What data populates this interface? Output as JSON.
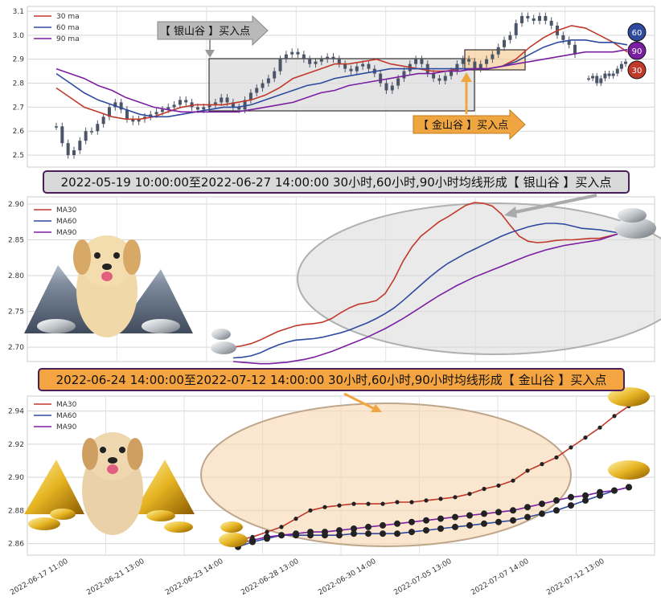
{
  "chart_data": [
    {
      "type": "candlestick",
      "ylim": [
        2.45,
        3.12
      ],
      "yticks": [
        "2.5",
        "2.6",
        "2.7",
        "2.8",
        "2.9",
        "3.0",
        "3.1"
      ],
      "grid": true,
      "legend_position": "top-left",
      "legend": [
        {
          "name": "30 ma",
          "color": "#c0392b"
        },
        {
          "name": "60 ma",
          "color": "#2e4a9e"
        },
        {
          "name": "90 ma",
          "color": "#7b1fa2"
        }
      ],
      "candles_approx_close": [
        2.62,
        2.55,
        2.5,
        2.52,
        2.56,
        2.6,
        2.6,
        2.63,
        2.66,
        2.7,
        2.72,
        2.69,
        2.65,
        2.64,
        2.65,
        2.66,
        2.67,
        2.68,
        2.69,
        2.7,
        2.71,
        2.73,
        2.72,
        2.7,
        2.69,
        2.7,
        2.71,
        2.72,
        2.74,
        2.72,
        2.7,
        2.69,
        2.73,
        2.76,
        2.78,
        2.8,
        2.82,
        2.85,
        2.9,
        2.92,
        2.93,
        2.92,
        2.9,
        2.88,
        2.89,
        2.9,
        2.91,
        2.9,
        2.88,
        2.86,
        2.85,
        2.87,
        2.88,
        2.86,
        2.84,
        2.8,
        2.77,
        2.79,
        2.82,
        2.85,
        2.88,
        2.9,
        2.88,
        2.84,
        2.82,
        2.81,
        2.83,
        2.85,
        2.88,
        2.9,
        2.89,
        2.86,
        2.88,
        2.9,
        2.92,
        2.95,
        2.98,
        3.0,
        3.05,
        3.08,
        3.07,
        3.06,
        3.08,
        3.06,
        3.04,
        3.0,
        2.98,
        2.96,
        2.92
      ],
      "gap_after_index": 87,
      "candles_after_gap": [
        2.82,
        2.83,
        2.8,
        2.82,
        2.84,
        2.83,
        2.84,
        2.86,
        2.88,
        2.89
      ],
      "ma30": [
        2.78,
        2.74,
        2.7,
        2.68,
        2.66,
        2.65,
        2.65,
        2.66,
        2.68,
        2.7,
        2.71,
        2.71,
        2.71,
        2.72,
        2.73,
        2.75,
        2.78,
        2.82,
        2.84,
        2.86,
        2.88,
        2.88,
        2.89,
        2.9,
        2.88,
        2.87,
        2.86,
        2.85,
        2.85,
        2.86,
        2.86,
        2.86,
        2.87,
        2.9,
        2.95,
        2.99,
        3.02,
        3.04,
        3.03,
        3.0,
        2.97,
        2.93
      ],
      "ma60": [
        2.84,
        2.8,
        2.76,
        2.73,
        2.71,
        2.69,
        2.67,
        2.66,
        2.66,
        2.67,
        2.68,
        2.69,
        2.7,
        2.7,
        2.71,
        2.73,
        2.75,
        2.77,
        2.79,
        2.8,
        2.82,
        2.83,
        2.84,
        2.85,
        2.86,
        2.86,
        2.86,
        2.86,
        2.86,
        2.86,
        2.86,
        2.86,
        2.87,
        2.89,
        2.92,
        2.95,
        2.97,
        2.98,
        2.98,
        2.97,
        2.97,
        2.96
      ],
      "ma90": [
        2.86,
        2.84,
        2.82,
        2.79,
        2.77,
        2.74,
        2.72,
        2.7,
        2.69,
        2.68,
        2.68,
        2.68,
        2.68,
        2.68,
        2.69,
        2.7,
        2.71,
        2.72,
        2.74,
        2.76,
        2.77,
        2.79,
        2.8,
        2.81,
        2.82,
        2.83,
        2.84,
        2.84,
        2.85,
        2.85,
        2.86,
        2.86,
        2.87,
        2.88,
        2.89,
        2.9,
        2.91,
        2.92,
        2.93,
        2.93,
        2.93,
        2.94
      ],
      "badges": [
        "60",
        "90",
        "30"
      ],
      "annotation_silver": "【 银山谷 】买入点",
      "annotation_gold": "【 金山谷 】买入点"
    },
    {
      "type": "line",
      "title": "2022-05-19 10:00:00至2022-06-27 14:00:00 30小时,60小时,90小时均线形成【 银山谷 】买入点",
      "ylim": [
        2.68,
        2.91
      ],
      "yticks": [
        "2.70",
        "2.75",
        "2.80",
        "2.85",
        "2.90"
      ],
      "grid": true,
      "legend_position": "top-left",
      "series": [
        {
          "name": "MA30",
          "color": "#c0392b",
          "values": [
            2.7,
            2.702,
            2.705,
            2.71,
            2.716,
            2.722,
            2.726,
            2.73,
            2.732,
            2.733,
            2.735,
            2.74,
            2.748,
            2.755,
            2.76,
            2.762,
            2.765,
            2.775,
            2.795,
            2.82,
            2.84,
            2.855,
            2.865,
            2.875,
            2.882,
            2.89,
            2.898,
            2.902,
            2.901,
            2.897,
            2.886,
            2.87,
            2.855,
            2.848,
            2.846,
            2.847,
            2.849,
            2.85,
            2.85,
            2.851,
            2.852,
            2.852,
            2.855,
            2.858
          ]
        },
        {
          "name": "MA60",
          "color": "#2e4a9e",
          "values": [
            2.685,
            2.686,
            2.688,
            2.692,
            2.698,
            2.703,
            2.707,
            2.71,
            2.711,
            2.712,
            2.714,
            2.717,
            2.72,
            2.724,
            2.729,
            2.734,
            2.74,
            2.747,
            2.755,
            2.765,
            2.776,
            2.787,
            2.798,
            2.808,
            2.817,
            2.824,
            2.831,
            2.837,
            2.843,
            2.849,
            2.855,
            2.86,
            2.864,
            2.868,
            2.871,
            2.873,
            2.873,
            2.872,
            2.869,
            2.866,
            2.865,
            2.864,
            2.862,
            2.86
          ]
        },
        {
          "name": "MA90",
          "color": "#7b1fa2",
          "values": [
            2.68,
            2.679,
            2.678,
            2.677,
            2.677,
            2.678,
            2.679,
            2.681,
            2.683,
            2.686,
            2.69,
            2.694,
            2.699,
            2.704,
            2.709,
            2.714,
            2.72,
            2.726,
            2.733,
            2.74,
            2.748,
            2.756,
            2.764,
            2.772,
            2.779,
            2.786,
            2.792,
            2.798,
            2.803,
            2.808,
            2.813,
            2.818,
            2.823,
            2.828,
            2.832,
            2.836,
            2.839,
            2.842,
            2.844,
            2.846,
            2.848,
            2.85,
            2.854,
            2.858
          ]
        }
      ]
    },
    {
      "type": "line",
      "title": "2022-06-24 14:00:00至2022-07-12 14:00:00 30小时,60小时,90小时均线形成【 金山谷 】买入点",
      "ylim": [
        2.853,
        2.949
      ],
      "yticks": [
        "2.86",
        "2.88",
        "2.90",
        "2.92",
        "2.94"
      ],
      "xticks": [
        "2022-06-17 11:00",
        "2022-06-21 13:00",
        "2022-06-23 14:00",
        "2022-06-28 13:00",
        "2022-06-30 14:00",
        "2022-07-05 13:00",
        "2022-07-07 14:00",
        "2022-07-12 13:00"
      ],
      "grid": true,
      "legend_position": "top-left",
      "series": [
        {
          "name": "MA30",
          "color": "#c0392b",
          "values": [
            2.862,
            2.864,
            2.867,
            2.87,
            2.875,
            2.88,
            2.882,
            2.883,
            2.884,
            2.884,
            2.884,
            2.885,
            2.885,
            2.886,
            2.887,
            2.888,
            2.89,
            2.893,
            2.895,
            2.898,
            2.904,
            2.908,
            2.912,
            2.918,
            2.924,
            2.93,
            2.937,
            2.943
          ]
        },
        {
          "name": "MA60",
          "color": "#2e4a9e",
          "values": [
            2.858,
            2.861,
            2.863,
            2.865,
            2.865,
            2.865,
            2.865,
            2.865,
            2.866,
            2.866,
            2.866,
            2.866,
            2.867,
            2.868,
            2.869,
            2.87,
            2.871,
            2.872,
            2.873,
            2.874,
            2.876,
            2.878,
            2.88,
            2.883,
            2.886,
            2.889,
            2.892,
            2.894
          ]
        },
        {
          "name": "MA90",
          "color": "#7b1fa2",
          "values": [
            2.86,
            2.862,
            2.864,
            2.865,
            2.866,
            2.867,
            2.867,
            2.868,
            2.869,
            2.87,
            2.871,
            2.872,
            2.873,
            2.874,
            2.875,
            2.876,
            2.877,
            2.878,
            2.879,
            2.88,
            2.882,
            2.884,
            2.886,
            2.888,
            2.889,
            2.891,
            2.892,
            2.894
          ]
        }
      ]
    }
  ]
}
